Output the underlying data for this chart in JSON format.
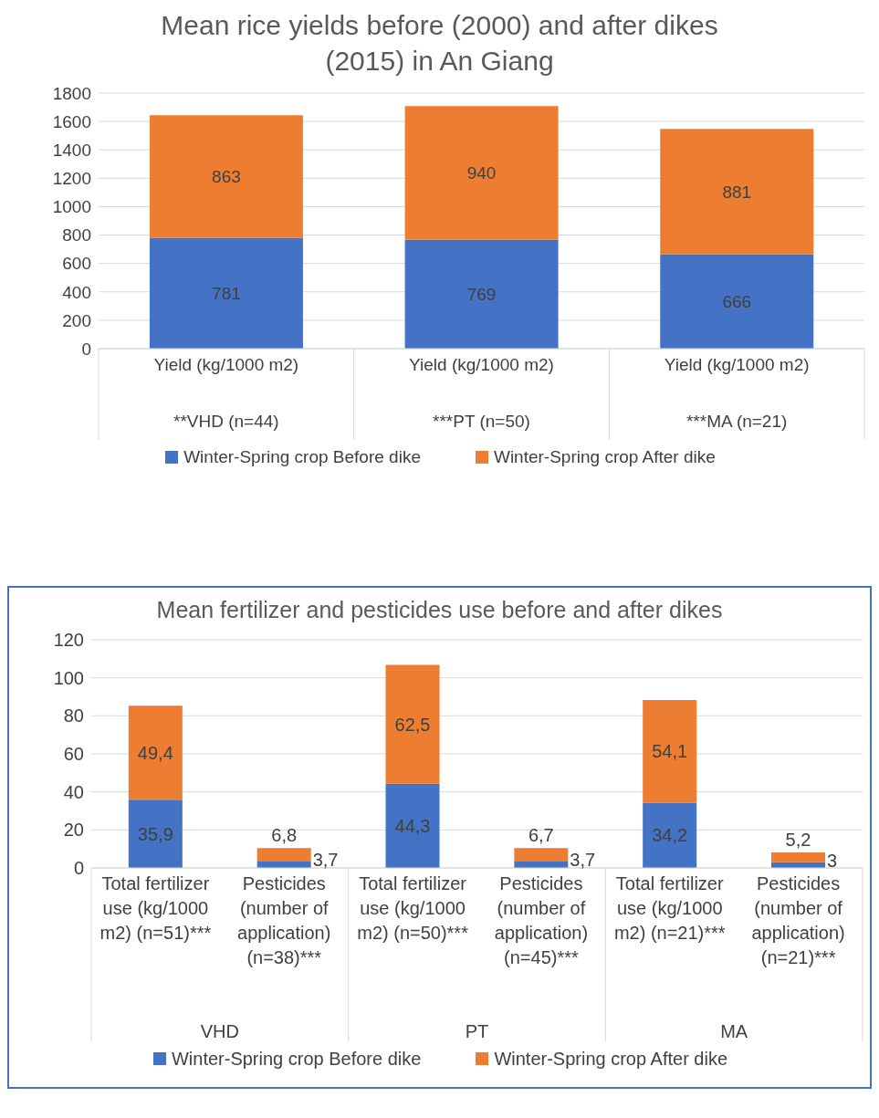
{
  "chart_data": [
    {
      "type": "bar",
      "title": "Mean rice yields before (2000) and after dikes (2015) in An Giang",
      "categories": [
        "Yield (kg/1000 m2)",
        "Yield (kg/1000 m2)",
        "Yield (kg/1000 m2)"
      ],
      "annotations": [
        "**VHD (n=44)",
        "***PT (n=50)",
        "***MA (n=21)"
      ],
      "stacked": true,
      "series": [
        {
          "name": "Winter-Spring crop Before dike",
          "color": "#4472c4",
          "values": [
            781,
            769,
            666
          ]
        },
        {
          "name": "Winter-Spring crop After dike",
          "color": "#ed7d31",
          "values": [
            863,
            940,
            881
          ]
        }
      ],
      "ylim": [
        0,
        1800
      ],
      "yticks": [
        0,
        200,
        400,
        600,
        800,
        1000,
        1200,
        1400,
        1600,
        1800
      ],
      "grid": "y",
      "legend": "bottom",
      "data_labels": true
    },
    {
      "type": "bar",
      "title": "Mean fertilizer and pesticides use before and after dikes",
      "categories": [
        "Total fertilizer use (kg/1000 m2) (n=51)***",
        "Pesticides (number of application) (n=38)***",
        "Total fertilizer use (kg/1000 m2) (n=50)***",
        "Pesticides (number of application) (n=45)***",
        "Total fertilizer use (kg/1000 m2) (n=21)***",
        "Pesticides (number of application) (n=21)***"
      ],
      "annotations": [
        "VHD",
        "PT",
        "MA"
      ],
      "stacked": true,
      "series": [
        {
          "name": "Winter-Spring crop Before dike",
          "color": "#4472c4",
          "values": [
            35.9,
            3.7,
            44.3,
            3.7,
            34.2,
            3
          ],
          "value_labels": [
            "35,9",
            "3,7",
            "44,3",
            "3,7",
            "34,2",
            "3"
          ]
        },
        {
          "name": "Winter-Spring crop After dike",
          "color": "#ed7d31",
          "values": [
            49.4,
            6.8,
            62.5,
            6.7,
            54.1,
            5.2
          ],
          "value_labels": [
            "49,4",
            "6,8",
            "62,5",
            "6,7",
            "54,1",
            "5,2"
          ]
        }
      ],
      "ylim": [
        0,
        120
      ],
      "yticks": [
        0,
        20,
        40,
        60,
        80,
        100,
        120
      ],
      "grid": "y",
      "legend": "bottom"
    }
  ]
}
